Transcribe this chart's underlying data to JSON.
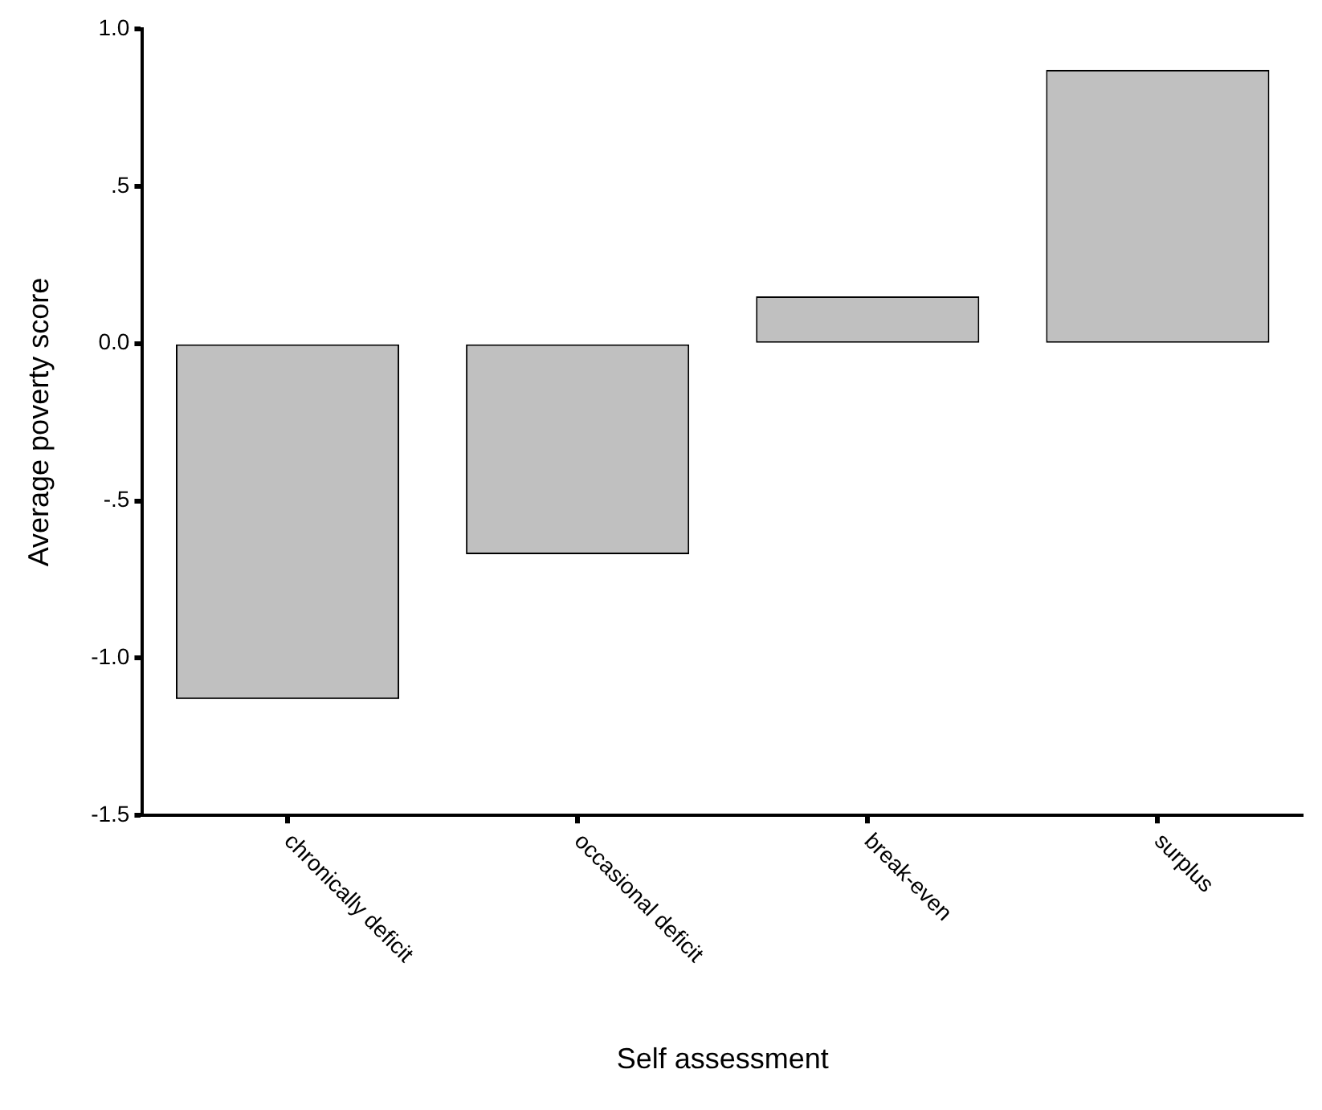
{
  "chart_data": {
    "type": "bar",
    "xlabel": "Self assessment",
    "ylabel": "Average poverty score",
    "categories": [
      "chronically deficit",
      "occasional deficit",
      "break-even",
      "surplus"
    ],
    "values": [
      -1.13,
      -0.67,
      0.15,
      0.87
    ],
    "color": "#c0c0c0",
    "ylim": [
      -1.5,
      1.0
    ],
    "yticks": [
      {
        "value": -1.5,
        "label": "-1.5"
      },
      {
        "value": -1.0,
        "label": "-1.0"
      },
      {
        "value": -0.5,
        "label": "-.5"
      },
      {
        "value": 0,
        "label": "0.0"
      },
      {
        "value": 0.5,
        "label": ".5"
      },
      {
        "value": 1.0,
        "label": "1.0"
      }
    ],
    "grid": false,
    "legend": false
  }
}
